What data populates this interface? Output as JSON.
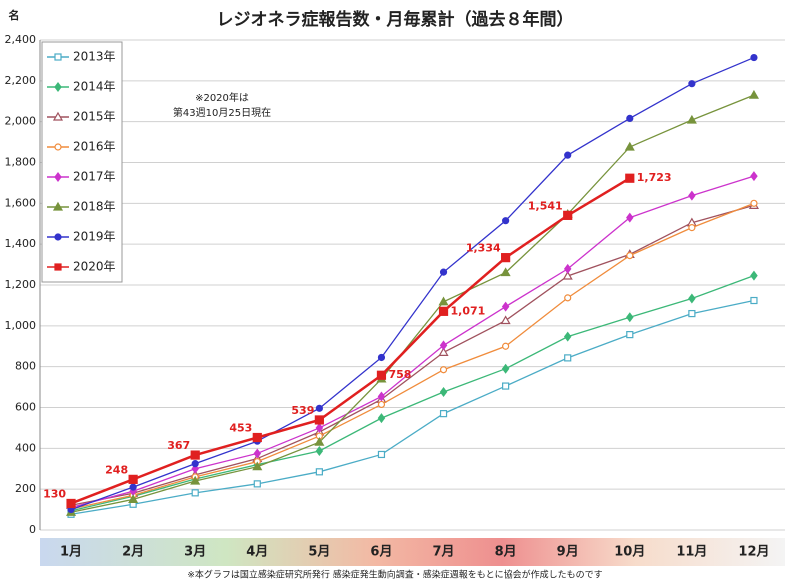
{
  "chart_data": {
    "type": "line",
    "title": "レジオネラ症報告数・月毎累計（過去８年間）",
    "y_label": "名",
    "annotation": [
      "※2020年は",
      "第43週10月25日現在"
    ],
    "footnote": "※本グラフは国立感染症研究所発行 感染症発生動向調査・感染症週報をもとに協会が作成したものです",
    "categories": [
      "1月",
      "2月",
      "3月",
      "4月",
      "5月",
      "6月",
      "7月",
      "8月",
      "9月",
      "10月",
      "11月",
      "12月"
    ],
    "ylim": [
      0,
      2400
    ],
    "yticks": [
      0,
      200,
      400,
      600,
      800,
      {
        "value": 1000,
        "label": "1,000"
      },
      {
        "value": 1200,
        "label": "1,200"
      },
      {
        "value": 1400,
        "label": "1,400"
      },
      {
        "value": 1600,
        "label": "1,600"
      },
      {
        "value": 1800,
        "label": "1,800"
      },
      {
        "value": 2000,
        "label": "2,000"
      },
      {
        "value": 2200,
        "label": "2,200"
      },
      {
        "value": 2400,
        "label": "2,400"
      }
    ],
    "grid": true,
    "legend": "top-left",
    "series": [
      {
        "name": "2013年",
        "color": "#4bacc6",
        "marker": "square-open",
        "values": [
          77,
          126,
          182,
          226,
          285,
          370,
          570,
          705,
          843,
          957,
          1060,
          1124
        ]
      },
      {
        "name": "2014年",
        "color": "#3cb878",
        "marker": "diamond",
        "values": [
          94,
          165,
          250,
          320,
          387,
          548,
          676,
          790,
          947,
          1042,
          1134,
          1246
        ]
      },
      {
        "name": "2015年",
        "color": "#a0525e",
        "marker": "triangle-open",
        "values": [
          121,
          180,
          270,
          350,
          480,
          640,
          870,
          1026,
          1244,
          1350,
          1505,
          1590
        ]
      },
      {
        "name": "2016年",
        "color": "#f08c3c",
        "marker": "circle-open",
        "values": [
          103,
          170,
          260,
          335,
          460,
          615,
          785,
          900,
          1137,
          1344,
          1481,
          1600
        ]
      },
      {
        "name": "2017年",
        "color": "#cc33cc",
        "marker": "diamond",
        "values": [
          110,
          190,
          300,
          375,
          500,
          654,
          904,
          1094,
          1279,
          1530,
          1638,
          1733
        ]
      },
      {
        "name": "2018年",
        "color": "#77933c",
        "marker": "triangle",
        "values": [
          87,
          150,
          240,
          310,
          430,
          740,
          1118,
          1261,
          1547,
          1876,
          2008,
          2130
        ]
      },
      {
        "name": "2019年",
        "color": "#3333cc",
        "marker": "circle",
        "values": [
          100,
          210,
          325,
          435,
          596,
          845,
          1263,
          1515,
          1836,
          2016,
          2186,
          2314
        ]
      },
      {
        "name": "2020年",
        "color": "#e02020",
        "marker": "square",
        "values": [
          130,
          248,
          367,
          453,
          539,
          758,
          1071,
          1334,
          1541,
          1723,
          null,
          null
        ],
        "value_labels": [
          "130",
          "248",
          "367",
          "453",
          "539",
          "758",
          "1,071",
          "1,334",
          "1,541",
          "1,723",
          null,
          null
        ]
      }
    ]
  }
}
